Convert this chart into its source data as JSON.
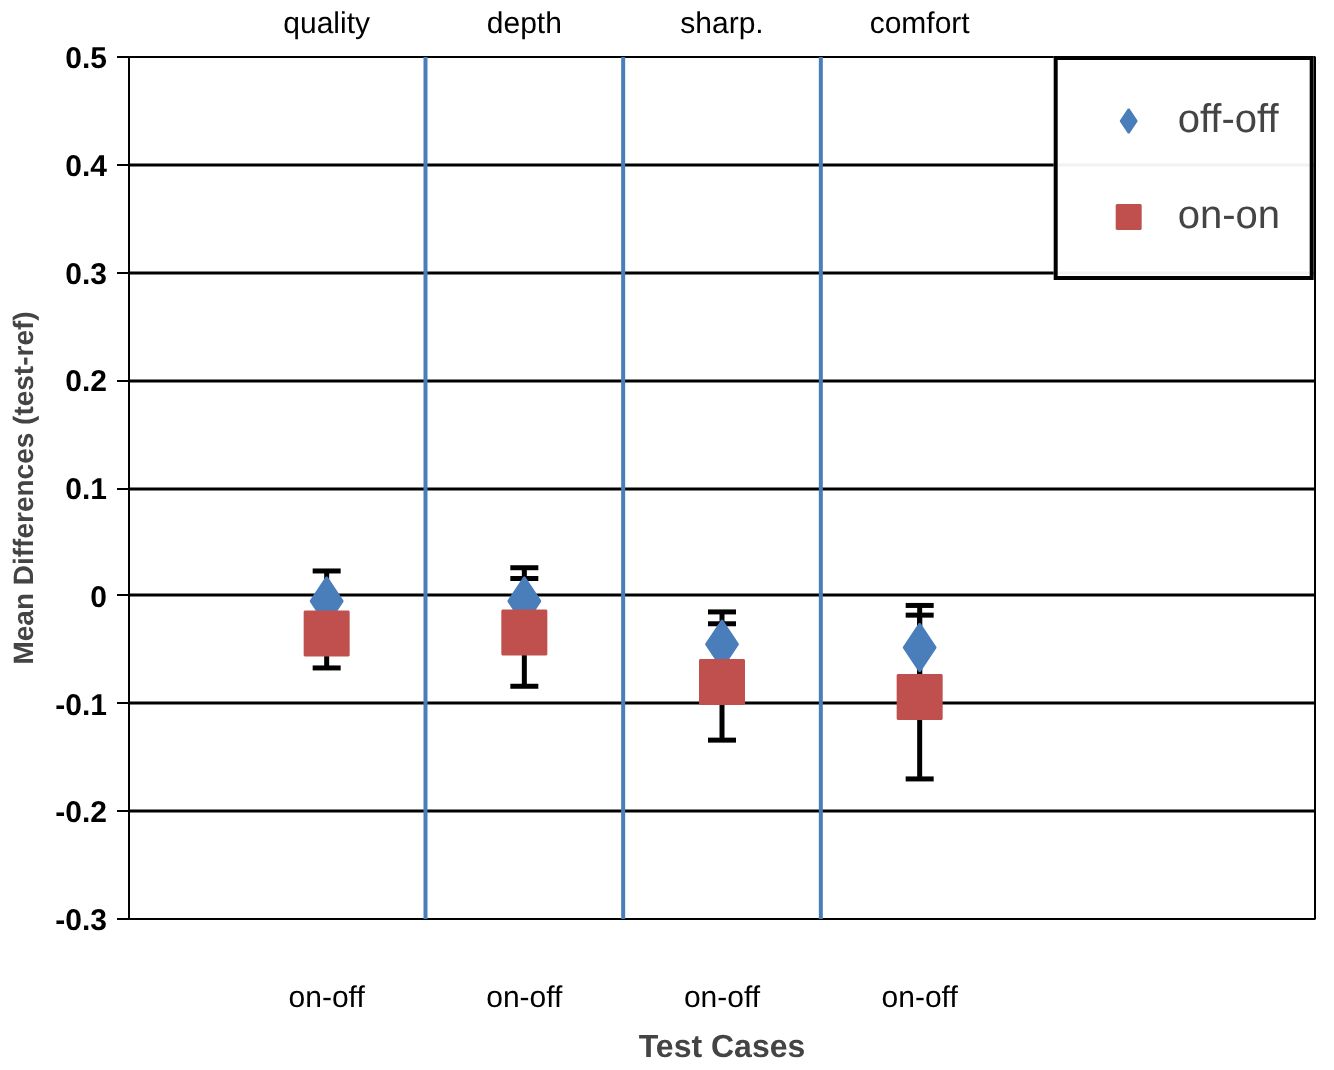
{
  "chart_data": {
    "type": "scatter",
    "xlabel": "Test Cases",
    "ylabel": "Mean Differences (test-ref)",
    "categories": [
      "on-off",
      "on-off",
      "on-off",
      "on-off"
    ],
    "ylim": [
      -0.3,
      0.5
    ],
    "yticks": [
      -0.3,
      -0.2,
      -0.1,
      0,
      0.1,
      0.2,
      0.3,
      0.4,
      0.5
    ],
    "grid": "y",
    "legend": "top right",
    "series": [
      {
        "name": "off-off",
        "color": "#4a7ebb",
        "marker": "diamond",
        "values": [
          -0.005,
          -0.005,
          -0.045,
          -0.048
        ],
        "errors": [
          0.028,
          0.031,
          0.03,
          0.039
        ]
      },
      {
        "name": "on-on",
        "color": "#c0504d",
        "marker": "square",
        "values": [
          -0.035,
          -0.034,
          -0.08,
          -0.094
        ],
        "errors": [
          0.032,
          0.05,
          0.054,
          0.076
        ]
      }
    ],
    "annotations": [
      "quality",
      "depth",
      "sharp.",
      "comfort"
    ]
  }
}
